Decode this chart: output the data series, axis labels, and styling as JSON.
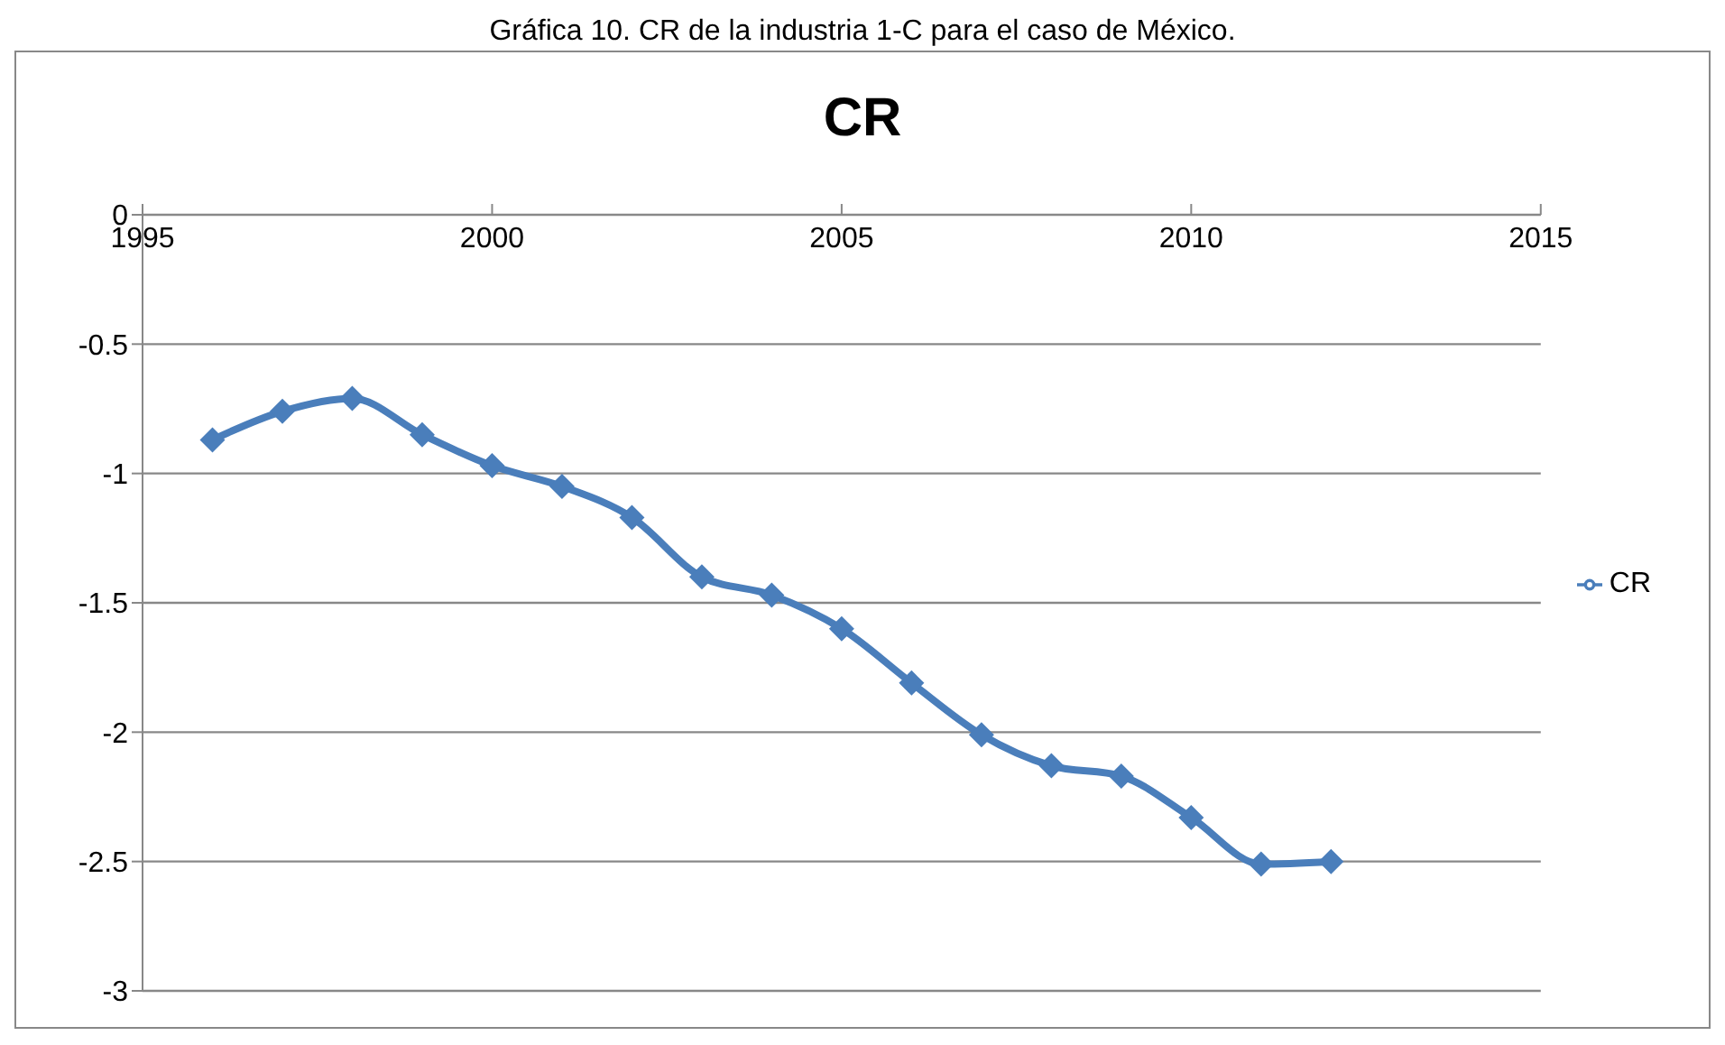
{
  "chart_data": {
    "type": "line",
    "title": "CR",
    "annotations": [
      "Gráfica 10. CR de la industria 1-C para el caso de México."
    ],
    "x": [
      1996,
      1997,
      1998,
      1999,
      2000,
      2001,
      2002,
      2003,
      2004,
      2005,
      2006,
      2007,
      2008,
      2009,
      2010,
      2011,
      2012
    ],
    "series": [
      {
        "name": "CR",
        "color": "#4a7ebb",
        "values": [
          -0.87,
          -0.76,
          -0.71,
          -0.85,
          -0.97,
          -1.05,
          -1.17,
          -1.4,
          -1.47,
          -1.6,
          -1.81,
          -2.01,
          -2.13,
          -2.17,
          -2.33,
          -2.51,
          -2.5
        ]
      }
    ],
    "xlim": [
      1995,
      2015
    ],
    "xticks": [
      1995,
      2000,
      2005,
      2010,
      2015
    ],
    "ylim": [
      -3,
      0
    ],
    "yticks": [
      0,
      -0.5,
      -1,
      -1.5,
      -2,
      -2.5,
      -3
    ],
    "grid": "y",
    "legend": "right",
    "marker": "diamond",
    "line_style": "solid"
  }
}
